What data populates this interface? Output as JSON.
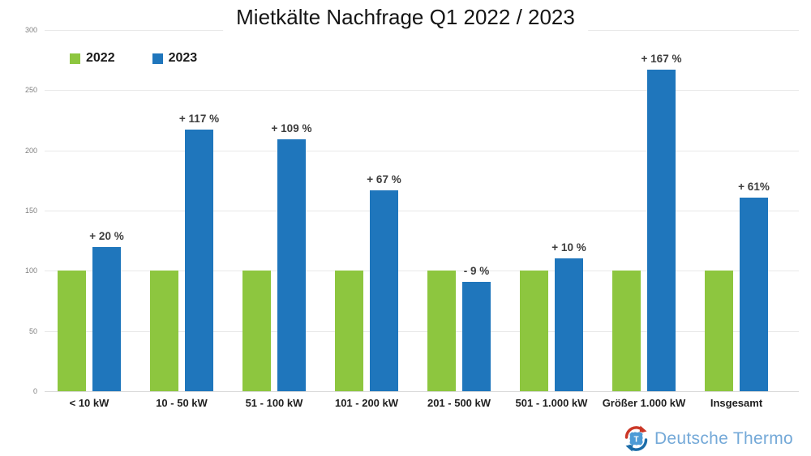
{
  "chart_data": {
    "type": "bar",
    "title": "Mietkälte Nachfrage Q1 2022 / 2023",
    "categories": [
      "< 10 kW",
      "10 - 50 kW",
      "51 - 100 kW",
      "101 - 200 kW",
      "201 - 500 kW",
      "501 - 1.000 kW",
      "Größer 1.000 kW",
      "Insgesamt"
    ],
    "series": [
      {
        "name": "2022",
        "color": "#8dc63f",
        "values": [
          100,
          100,
          100,
          100,
          100,
          100,
          100,
          100
        ]
      },
      {
        "name": "2023",
        "color": "#1f76bc",
        "values": [
          120,
          217,
          209,
          167,
          91,
          110,
          267,
          161
        ],
        "bar_labels": [
          "+ 20 %",
          "+ 117 %",
          "+ 109 %",
          "+ 67 %",
          "- 9 %",
          "+ 10 %",
          "+ 167 %",
          "+ 61%"
        ]
      }
    ],
    "xlabel": "",
    "ylabel": "",
    "ylim": [
      0,
      300
    ],
    "y_ticks": [
      0,
      50,
      100,
      150,
      200,
      250,
      300
    ],
    "grid": true,
    "legend_position": "top-left"
  },
  "branding": {
    "logo_text": "Deutsche Thermo",
    "logo_text_color": "#74a9d8",
    "logo_icon_red": "#cb3727",
    "logo_icon_blue": "#1b6ca8",
    "logo_icon_square": "#4d9bd6"
  }
}
